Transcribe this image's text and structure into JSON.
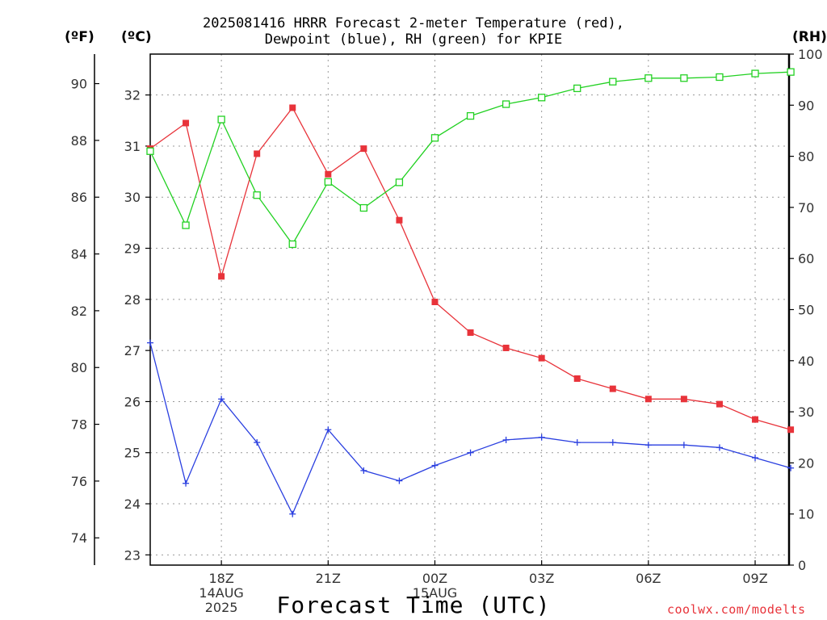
{
  "title": {
    "line1": "2025081416 HRRR Forecast 2-meter Temperature (red),",
    "line2": "Dewpoint (blue), RH (green) for KPIE"
  },
  "units": {
    "fahrenheit": "(ºF)",
    "celsius": "(ºC)",
    "rh": "(RH)"
  },
  "xlabel": "Forecast Time (UTC)",
  "credit": "coolwx.com/modelts",
  "colors": {
    "temperature": "#e8333a",
    "dewpoint": "#2a3fe0",
    "rh": "#22d122",
    "grid": "#999999",
    "axis": "#000000"
  },
  "chart_data": {
    "type": "line",
    "title": "2025081416 HRRR Forecast 2-meter Temperature (red), Dewpoint (blue), RH (green) for KPIE",
    "xlabel": "Forecast Time (UTC)",
    "x_hours_utc": [
      "16Z",
      "17Z",
      "18Z",
      "19Z",
      "20Z",
      "21Z",
      "22Z",
      "23Z",
      "00Z",
      "01Z",
      "02Z",
      "03Z",
      "04Z",
      "05Z",
      "06Z",
      "07Z",
      "08Z",
      "09Z",
      "10Z"
    ],
    "x_ticks": [
      {
        "hour": "18Z",
        "lines": [
          "18Z",
          "14AUG",
          "2025"
        ]
      },
      {
        "hour": "21Z",
        "lines": [
          "21Z"
        ]
      },
      {
        "hour": "00Z",
        "lines": [
          "00Z",
          "15AUG"
        ]
      },
      {
        "hour": "03Z",
        "lines": [
          "03Z"
        ]
      },
      {
        "hour": "06Z",
        "lines": [
          "06Z"
        ]
      },
      {
        "hour": "09Z",
        "lines": [
          "09Z"
        ]
      }
    ],
    "y_celsius": {
      "range": [
        22.8,
        32.8
      ],
      "ticks": [
        23,
        24,
        25,
        26,
        27,
        28,
        29,
        30,
        31,
        32
      ]
    },
    "y_fahrenheit": {
      "ticks": [
        74,
        76,
        78,
        80,
        82,
        84,
        86,
        88,
        90
      ]
    },
    "y_rh": {
      "range": [
        0,
        100
      ],
      "ticks": [
        0,
        10,
        20,
        30,
        40,
        50,
        60,
        70,
        80,
        90,
        100
      ]
    },
    "grid": true,
    "series": [
      {
        "name": "Temperature",
        "axis": "celsius",
        "marker": "filled-square",
        "values": [
          30.95,
          31.45,
          28.45,
          30.85,
          31.75,
          30.45,
          30.95,
          29.55,
          27.95,
          27.35,
          27.05,
          26.85,
          26.45,
          26.25,
          26.05,
          26.05,
          25.95,
          25.65,
          25.45
        ]
      },
      {
        "name": "Dewpoint",
        "axis": "celsius",
        "marker": "plus",
        "values": [
          27.15,
          24.4,
          26.05,
          25.2,
          23.8,
          25.45,
          24.65,
          24.45,
          24.75,
          25.0,
          25.25,
          25.3,
          25.2,
          25.2,
          25.15,
          25.15,
          25.1,
          24.9,
          24.7
        ]
      },
      {
        "name": "RH",
        "axis": "rh",
        "marker": "open-square",
        "values": [
          81,
          66.5,
          87.2,
          72.4,
          62.8,
          75,
          69.9,
          74.9,
          83.6,
          87.9,
          90.2,
          91.5,
          93.3,
          94.6,
          95.3,
          95.3,
          95.5,
          96.2,
          96.5
        ]
      }
    ]
  }
}
